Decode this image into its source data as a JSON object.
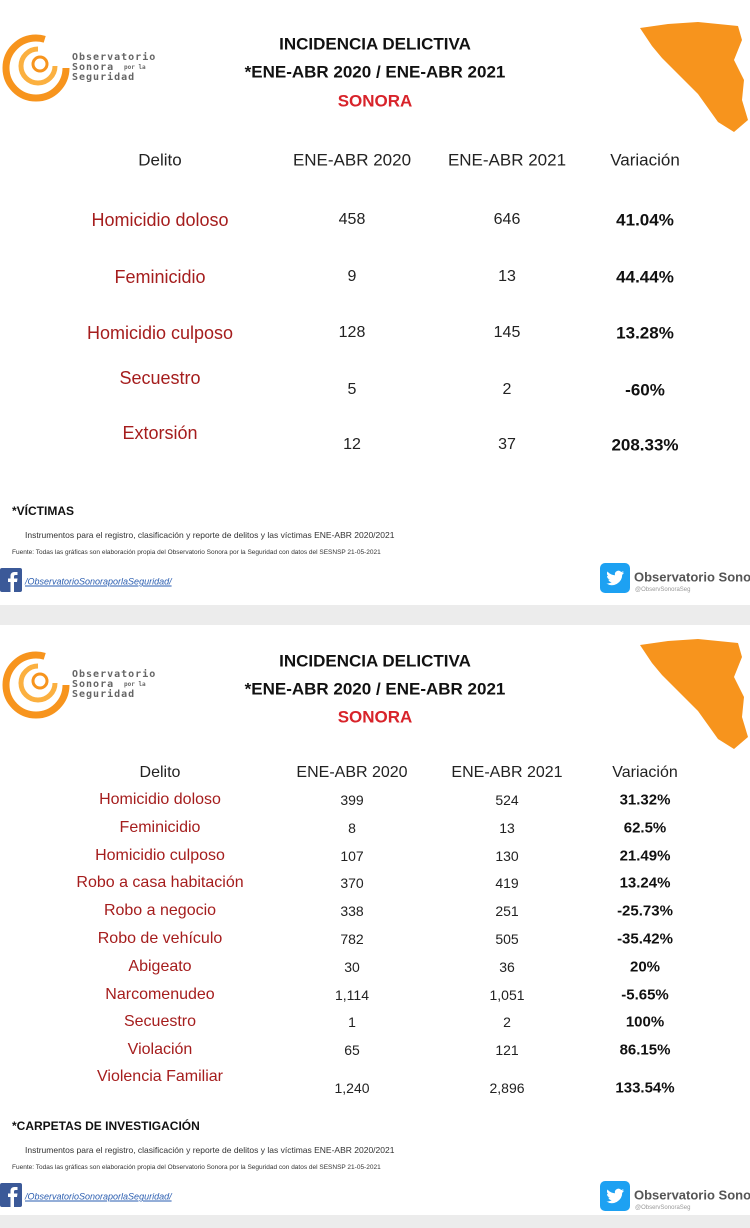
{
  "panels": [
    {
      "logo": {
        "line1": "Observatorio",
        "line2": "Sonora",
        "line2b": "por la",
        "line3": "Seguridad"
      },
      "title": "INCIDENCIA DELICTIVA",
      "period": "*ENE-ABR 2020 / ENE-ABR 2021",
      "region": "SONORA",
      "table": {
        "header": [
          "Delito",
          "ENE-ABR 2020",
          "ENE-ABR 2021",
          "Variación"
        ],
        "rows": [
          [
            "Homicidio doloso",
            "458",
            "646",
            "41.04%"
          ],
          [
            "Feminicidio",
            "9",
            "13",
            "44.44%"
          ],
          [
            "Homicidio culposo",
            "128",
            "145",
            "13.28%"
          ],
          [
            "Secuestro",
            "5",
            "2",
            "-60%"
          ],
          [
            "Extorsión",
            "12",
            "37",
            "208.33%"
          ]
        ]
      },
      "note": "*VÍCTIMAS",
      "instruments": "Instrumentos para el registro, clasificación y reporte de delitos y las víctimas ENE-ABR 2020/2021",
      "source": "Fuente: Todas las gráficas son elaboración propia del Observatorio Sonora por la Seguridad con datos del SESNSP 21-05-2021",
      "facebook": "/ObservatorioSonoraporlaSeguridad/",
      "twitter": {
        "name": "Observatorio Sonora",
        "handle": "@ObservSonoraSeg"
      }
    },
    {
      "logo": {
        "line1": "Observatorio",
        "line2": "Sonora",
        "line2b": "por la",
        "line3": "Seguridad"
      },
      "title": "INCIDENCIA DELICTIVA",
      "period": "*ENE-ABR 2020 / ENE-ABR 2021",
      "region": "SONORA",
      "table": {
        "header": [
          "Delito",
          "ENE-ABR 2020",
          "ENE-ABR 2021",
          "Variación"
        ],
        "rows": [
          [
            "Homicidio doloso",
            "399",
            "524",
            "31.32%"
          ],
          [
            "Feminicidio",
            "8",
            "13",
            "62.5%"
          ],
          [
            "Homicidio culposo",
            "107",
            "130",
            "21.49%"
          ],
          [
            "Robo a casa habitación",
            "370",
            "419",
            "13.24%"
          ],
          [
            "Robo a negocio",
            "338",
            "251",
            "-25.73%"
          ],
          [
            "Robo de vehículo",
            "782",
            "505",
            "-35.42%"
          ],
          [
            "Abigeato",
            "30",
            "36",
            "20%"
          ],
          [
            "Narcomenudeo",
            "1,114",
            "1,051",
            "-5.65%"
          ],
          [
            "Secuestro",
            "1",
            "2",
            "100%"
          ],
          [
            "Violación",
            "65",
            "121",
            "86.15%"
          ],
          [
            "Violencia Familiar",
            "1,240",
            "2,896",
            "133.54%"
          ]
        ]
      },
      "note": "*CARPETAS DE INVESTIGACIÓN",
      "instruments": "Instrumentos para el registro, clasificación y reporte de delitos y las víctimas ENE-ABR 2020/2021",
      "source": "Fuente: Todas las gráficas son elaboración propia del Observatorio Sonora por la Seguridad con datos del SESNSP 21-05-2021",
      "facebook": "/ObservatorioSonoraporlaSeguridad/",
      "twitter": {
        "name": "Observatorio Sonora",
        "handle": "@ObservSonoraSeg"
      }
    }
  ]
}
